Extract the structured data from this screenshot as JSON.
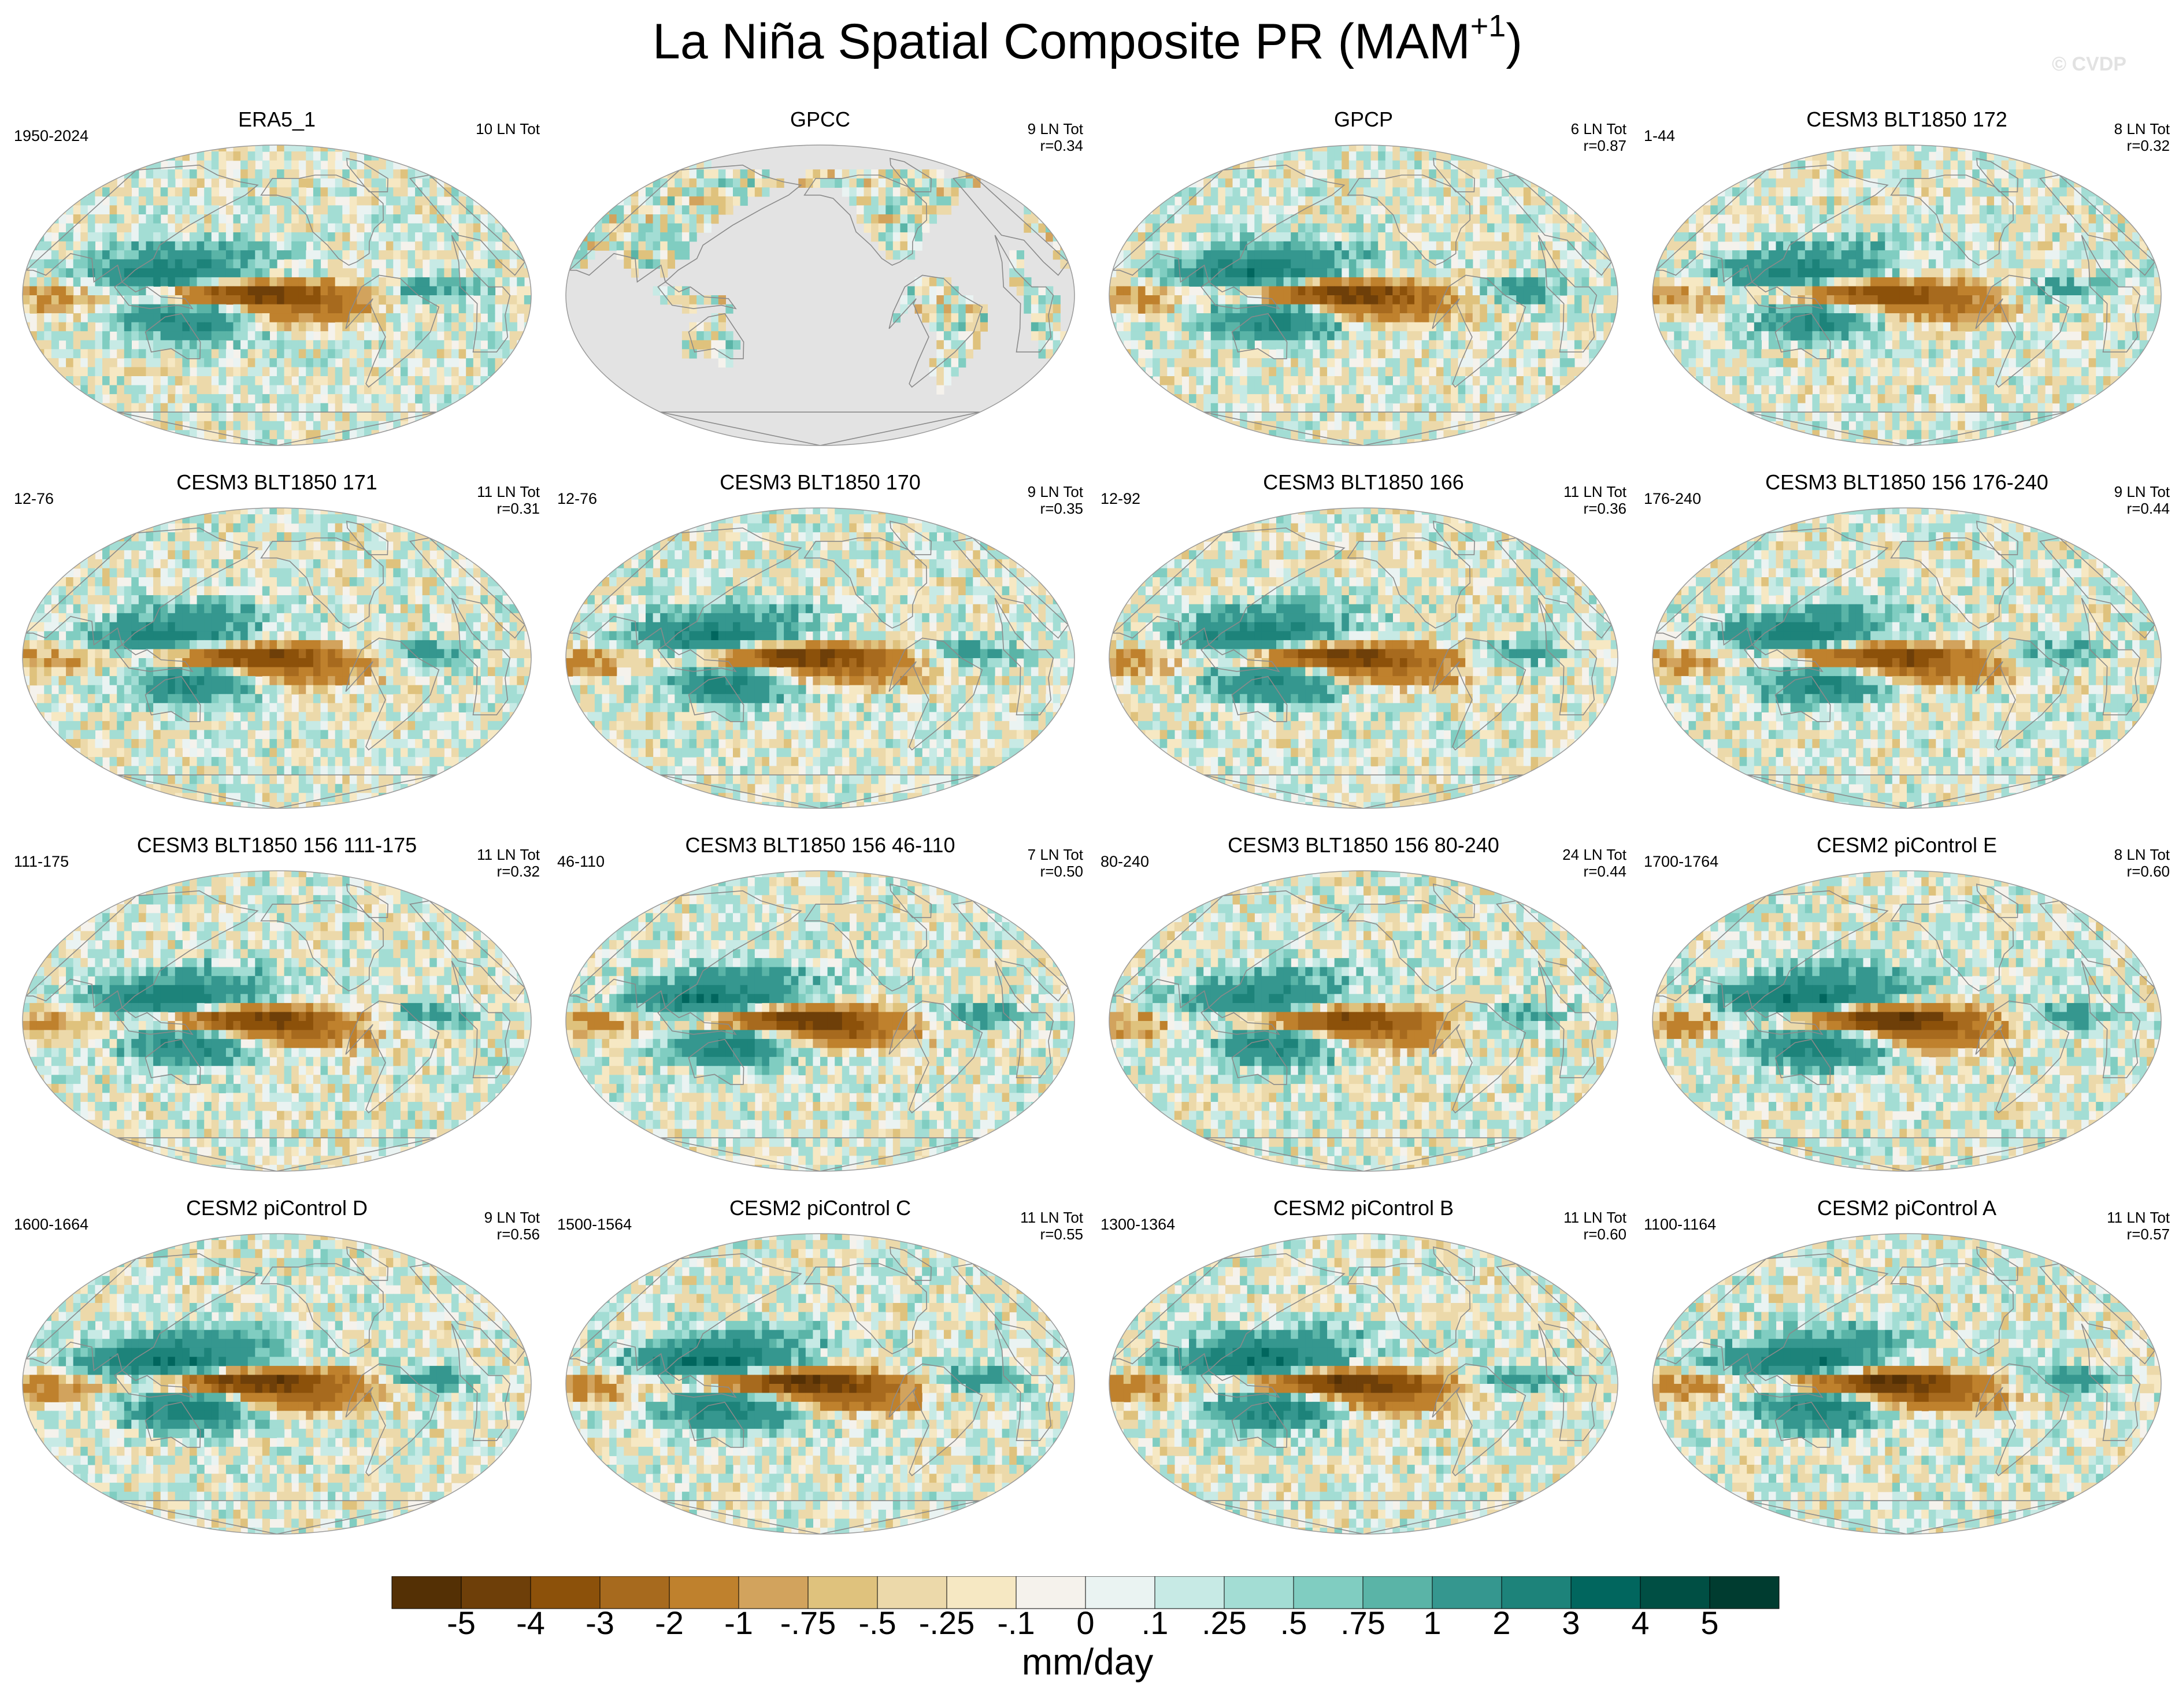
{
  "header": {
    "title": "La Niña Spatial Composite PR (MAM",
    "title_sup": "+1",
    "title_close": ")",
    "watermark": "© CVDP"
  },
  "panels": [
    {
      "title": "ERA5_1",
      "years": "1950-2024",
      "count": "10 LN Tot",
      "r": "",
      "fill": "data",
      "strength": 0.85,
      "seed": 1
    },
    {
      "title": "GPCC",
      "years": "",
      "count": "9 LN Tot",
      "r": "r=0.34",
      "fill": "land-only",
      "strength": 0.35,
      "seed": 2
    },
    {
      "title": "GPCP",
      "years": "",
      "count": "6 LN Tot",
      "r": "r=0.87",
      "fill": "data",
      "strength": 0.9,
      "seed": 3
    },
    {
      "title": "CESM3 BLT1850 172",
      "years": "1-44",
      "count": "8 LN Tot",
      "r": "r=0.32",
      "fill": "data",
      "strength": 0.75,
      "seed": 4
    },
    {
      "title": "CESM3 BLT1850 171",
      "years": "12-76",
      "count": "11 LN Tot",
      "r": "r=0.31",
      "fill": "data",
      "strength": 0.8,
      "seed": 5
    },
    {
      "title": "CESM3 BLT1850 170",
      "years": "12-76",
      "count": "9 LN Tot",
      "r": "r=0.35",
      "fill": "data",
      "strength": 0.85,
      "seed": 6
    },
    {
      "title": "CESM3 BLT1850 166",
      "years": "12-92",
      "count": "11 LN Tot",
      "r": "r=0.36",
      "fill": "data",
      "strength": 0.85,
      "seed": 7
    },
    {
      "title": "CESM3 BLT1850 156 176-240",
      "years": "176-240",
      "count": "9 LN Tot",
      "r": "r=0.44",
      "fill": "data",
      "strength": 0.8,
      "seed": 8
    },
    {
      "title": "CESM3 BLT1850 156 111-175",
      "years": "111-175",
      "count": "11 LN Tot",
      "r": "r=0.32",
      "fill": "data",
      "strength": 0.85,
      "seed": 9
    },
    {
      "title": "CESM3 BLT1850 156 46-110",
      "years": "46-110",
      "count": "7 LN Tot",
      "r": "r=0.50",
      "fill": "data",
      "strength": 0.95,
      "seed": 10
    },
    {
      "title": "CESM3 BLT1850 156 80-240",
      "years": "80-240",
      "count": "24 LN Tot",
      "r": "r=0.44",
      "fill": "data",
      "strength": 0.75,
      "seed": 11
    },
    {
      "title": "CESM2 piControl E",
      "years": "1700-1764",
      "count": "8 LN Tot",
      "r": "r=0.60",
      "fill": "data",
      "strength": 1.0,
      "seed": 12
    },
    {
      "title": "CESM2 piControl D",
      "years": "1600-1664",
      "count": "9 LN Tot",
      "r": "r=0.56",
      "fill": "data",
      "strength": 1.0,
      "seed": 13
    },
    {
      "title": "CESM2 piControl C",
      "years": "1500-1564",
      "count": "11 LN Tot",
      "r": "r=0.55",
      "fill": "data",
      "strength": 1.0,
      "seed": 14
    },
    {
      "title": "CESM2 piControl B",
      "years": "1300-1364",
      "count": "11 LN Tot",
      "r": "r=0.60",
      "fill": "data",
      "strength": 1.0,
      "seed": 15
    },
    {
      "title": "CESM2 piControl A",
      "years": "1100-1164",
      "count": "11 LN Tot",
      "r": "r=0.57",
      "fill": "data",
      "strength": 1.0,
      "seed": 16
    }
  ],
  "chart_data": {
    "type": "heatmap",
    "title": "La Niña Spatial Composite PR (MAM+1)",
    "projection": "Robinson (Pacific-centered)",
    "panel_titles": [
      "ERA5_1",
      "GPCC",
      "GPCP",
      "CESM3 BLT1850 172",
      "CESM3 BLT1850 171",
      "CESM3 BLT1850 170",
      "CESM3 BLT1850 166",
      "CESM3 BLT1850 156 176-240",
      "CESM3 BLT1850 156 111-175",
      "CESM3 BLT1850 156 46-110",
      "CESM3 BLT1850 156 80-240",
      "CESM2 piControl E",
      "CESM2 piControl D",
      "CESM2 piControl C",
      "CESM2 piControl B",
      "CESM2 piControl A"
    ],
    "colorbar": {
      "units": "mm/day",
      "tick_labels": [
        "-5",
        "-4",
        "-3",
        "-2",
        "-1",
        "-.75",
        "-.5",
        "-.25",
        "-.1",
        "0",
        ".1",
        ".25",
        ".5",
        ".75",
        "1",
        "2",
        "3",
        "4",
        "5"
      ],
      "colors": [
        "#543005",
        "#6e3f09",
        "#8c510a",
        "#a76a1e",
        "#bf812d",
        "#d2a35d",
        "#dfc27d",
        "#ecd9aa",
        "#f6e8c3",
        "#f5f2ec",
        "#eaf3f2",
        "#c7eae5",
        "#a3ddd4",
        "#80cdc1",
        "#5ab4a7",
        "#35978f",
        "#1d837a",
        "#01665e",
        "#004f44",
        "#003c30"
      ]
    },
    "missing_color": "#e3e3e3"
  }
}
